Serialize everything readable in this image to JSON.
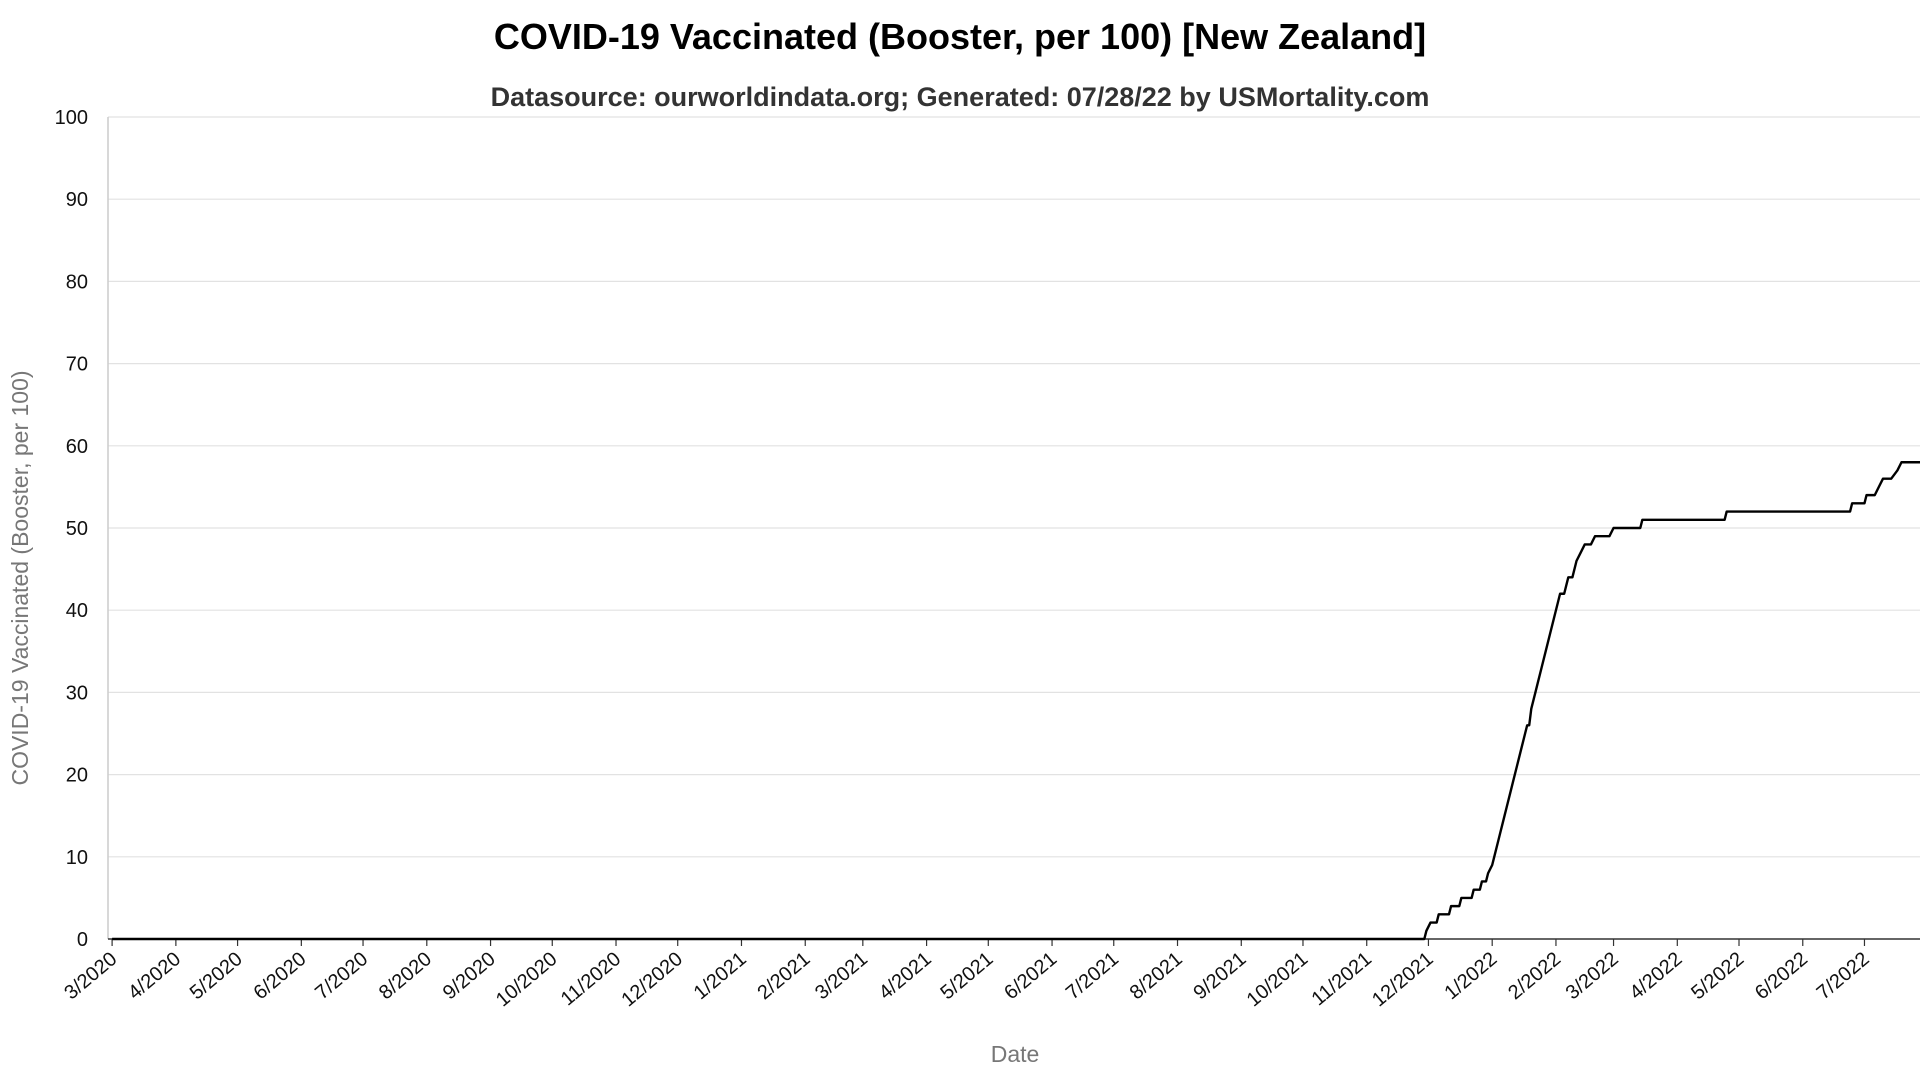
{
  "chart_data": {
    "type": "line",
    "title": "COVID-19 Vaccinated (Booster, per 100) [New Zealand]",
    "subtitle": "Datasource: ourworldindata.org; Generated: 07/28/22 by USMortality.com",
    "xlabel": "Date",
    "ylabel": "COVID-19 Vaccinated (Booster, per 100)",
    "ylim": [
      0,
      100
    ],
    "yticks": [
      0,
      10,
      20,
      30,
      40,
      50,
      60,
      70,
      80,
      90,
      100
    ],
    "xlim": [
      "2020-02-28",
      "2022-07-28"
    ],
    "grid": true,
    "legend": "none",
    "x_tick_labels": [
      {
        "date": "2020-03-01",
        "label": "3/2020"
      },
      {
        "date": "2020-04-01",
        "label": "4/2020"
      },
      {
        "date": "2020-05-01",
        "label": "5/2020"
      },
      {
        "date": "2020-06-01",
        "label": "6/2020"
      },
      {
        "date": "2020-07-01",
        "label": "7/2020"
      },
      {
        "date": "2020-08-01",
        "label": "8/2020"
      },
      {
        "date": "2020-09-01",
        "label": "9/2020"
      },
      {
        "date": "2020-10-01",
        "label": "10/2020"
      },
      {
        "date": "2020-11-01",
        "label": "11/2020"
      },
      {
        "date": "2020-12-01",
        "label": "12/2020"
      },
      {
        "date": "2021-01-01",
        "label": "1/2021"
      },
      {
        "date": "2021-02-01",
        "label": "2/2021"
      },
      {
        "date": "2021-03-01",
        "label": "3/2021"
      },
      {
        "date": "2021-04-01",
        "label": "4/2021"
      },
      {
        "date": "2021-05-01",
        "label": "5/2021"
      },
      {
        "date": "2021-06-01",
        "label": "6/2021"
      },
      {
        "date": "2021-07-01",
        "label": "7/2021"
      },
      {
        "date": "2021-08-01",
        "label": "8/2021"
      },
      {
        "date": "2021-09-01",
        "label": "9/2021"
      },
      {
        "date": "2021-10-01",
        "label": "10/2021"
      },
      {
        "date": "2021-11-01",
        "label": "11/2021"
      },
      {
        "date": "2021-12-01",
        "label": "12/2021"
      },
      {
        "date": "2022-01-01",
        "label": "1/2022"
      },
      {
        "date": "2022-02-01",
        "label": "2/2022"
      },
      {
        "date": "2022-03-01",
        "label": "3/2022"
      },
      {
        "date": "2022-04-01",
        "label": "4/2022"
      },
      {
        "date": "2022-05-01",
        "label": "5/2022"
      },
      {
        "date": "2022-06-01",
        "label": "6/2022"
      },
      {
        "date": "2022-07-01",
        "label": "7/2022"
      }
    ],
    "series": [
      {
        "color": "#000000",
        "points": [
          [
            "2020-03-01",
            0
          ],
          [
            "2021-11-29",
            0
          ],
          [
            "2021-11-30",
            1
          ],
          [
            "2021-12-02",
            2
          ],
          [
            "2021-12-05",
            2
          ],
          [
            "2021-12-06",
            3
          ],
          [
            "2021-12-11",
            3
          ],
          [
            "2021-12-12",
            4
          ],
          [
            "2021-12-16",
            4
          ],
          [
            "2021-12-17",
            5
          ],
          [
            "2021-12-22",
            5
          ],
          [
            "2021-12-23",
            6
          ],
          [
            "2021-12-26",
            6
          ],
          [
            "2021-12-27",
            7
          ],
          [
            "2021-12-29",
            7
          ],
          [
            "2021-12-30",
            8
          ],
          [
            "2022-01-01",
            9
          ],
          [
            "2022-01-02",
            10
          ],
          [
            "2022-01-04",
            12
          ],
          [
            "2022-01-05",
            13
          ],
          [
            "2022-01-06",
            14
          ],
          [
            "2022-01-07",
            15
          ],
          [
            "2022-01-08",
            16
          ],
          [
            "2022-01-10",
            18
          ],
          [
            "2022-01-11",
            19
          ],
          [
            "2022-01-13",
            21
          ],
          [
            "2022-01-15",
            23
          ],
          [
            "2022-01-17",
            25
          ],
          [
            "2022-01-18",
            26
          ],
          [
            "2022-01-19",
            26
          ],
          [
            "2022-01-20",
            28
          ],
          [
            "2022-01-22",
            30
          ],
          [
            "2022-01-23",
            31
          ],
          [
            "2022-01-25",
            33
          ],
          [
            "2022-01-27",
            35
          ],
          [
            "2022-01-29",
            37
          ],
          [
            "2022-01-31",
            39
          ],
          [
            "2022-02-02",
            41
          ],
          [
            "2022-02-03",
            42
          ],
          [
            "2022-02-05",
            42
          ],
          [
            "2022-02-07",
            44
          ],
          [
            "2022-02-09",
            44
          ],
          [
            "2022-02-11",
            46
          ],
          [
            "2022-02-13",
            47
          ],
          [
            "2022-02-15",
            48
          ],
          [
            "2022-02-18",
            48
          ],
          [
            "2022-02-20",
            49
          ],
          [
            "2022-02-27",
            49
          ],
          [
            "2022-03-01",
            50
          ],
          [
            "2022-03-14",
            50
          ],
          [
            "2022-03-15",
            51
          ],
          [
            "2022-04-24",
            51
          ],
          [
            "2022-04-25",
            52
          ],
          [
            "2022-06-24",
            52
          ],
          [
            "2022-06-25",
            53
          ],
          [
            "2022-07-01",
            53
          ],
          [
            "2022-07-02",
            54
          ],
          [
            "2022-07-06",
            54
          ],
          [
            "2022-07-08",
            55
          ],
          [
            "2022-07-10",
            56
          ],
          [
            "2022-07-14",
            56
          ],
          [
            "2022-07-17",
            57
          ],
          [
            "2022-07-19",
            58
          ],
          [
            "2022-07-28",
            58
          ]
        ]
      }
    ]
  }
}
